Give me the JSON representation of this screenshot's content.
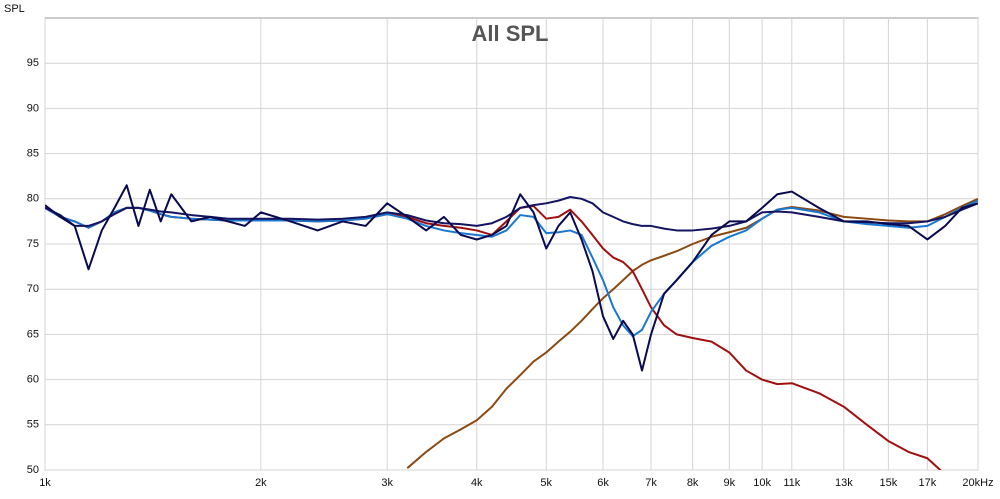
{
  "chart_data": {
    "type": "line",
    "title": "All SPL",
    "ylabel": "SPL",
    "xscale": "log",
    "grid": true,
    "xlim": [
      1000,
      20000
    ],
    "ylim": [
      50,
      100
    ],
    "yticks": [
      50,
      55,
      60,
      65,
      70,
      75,
      80,
      85,
      90,
      95
    ],
    "xticks": [
      {
        "value": 1000,
        "label": "1k"
      },
      {
        "value": 2000,
        "label": "2k"
      },
      {
        "value": 3000,
        "label": "3k"
      },
      {
        "value": 4000,
        "label": "4k"
      },
      {
        "value": 5000,
        "label": "5k"
      },
      {
        "value": 6000,
        "label": "6k"
      },
      {
        "value": 7000,
        "label": "7k"
      },
      {
        "value": 8000,
        "label": "8k"
      },
      {
        "value": 9000,
        "label": "9k"
      },
      {
        "value": 10000,
        "label": "10k"
      },
      {
        "value": 11000,
        "label": "11k"
      },
      {
        "value": 13000,
        "label": "13k"
      },
      {
        "value": 15000,
        "label": "15k"
      },
      {
        "value": 17000,
        "label": "17k"
      },
      {
        "value": 20000,
        "label": "20kHz"
      }
    ],
    "x": [
      1000,
      1050,
      1100,
      1150,
      1200,
      1250,
      1300,
      1350,
      1400,
      1450,
      1500,
      1600,
      1700,
      1800,
      1900,
      2000,
      2200,
      2400,
      2600,
      2800,
      3000,
      3200,
      3400,
      3600,
      3800,
      4000,
      4200,
      4400,
      4600,
      4800,
      5000,
      5200,
      5400,
      5600,
      5800,
      6000,
      6200,
      6400,
      6600,
      6800,
      7000,
      7300,
      7600,
      8000,
      8500,
      9000,
      9500,
      10000,
      10500,
      11000,
      12000,
      13000,
      14000,
      15000,
      16000,
      17000,
      18000,
      19000,
      20000
    ],
    "series": [
      {
        "color": "#8b4a12",
        "values": [
          null,
          null,
          null,
          null,
          null,
          null,
          null,
          null,
          null,
          null,
          null,
          null,
          null,
          null,
          null,
          null,
          null,
          null,
          null,
          null,
          null,
          50.2,
          52,
          53.5,
          54.5,
          55.5,
          57,
          59,
          60.5,
          62,
          63,
          64.2,
          65.3,
          66.5,
          67.8,
          69,
          70,
          71,
          72,
          72.7,
          73.2,
          73.7,
          74.2,
          75,
          75.8,
          76.3,
          76.8,
          77.8,
          78.8,
          79.1,
          78.7,
          78,
          77.8,
          77.6,
          77.5,
          77.5,
          78.3,
          79.2,
          80
        ]
      },
      {
        "color": "#a01010",
        "values": [
          79,
          78,
          77.5,
          76.8,
          77.5,
          78.5,
          79,
          79,
          78.7,
          78.3,
          78,
          77.8,
          77.7,
          77.6,
          77.6,
          77.6,
          77.6,
          77.5,
          77.6,
          77.8,
          78.3,
          78,
          77.3,
          77,
          76.8,
          76.5,
          76,
          77.5,
          79,
          79.2,
          77.8,
          78,
          78.8,
          77.5,
          76,
          74.5,
          73.5,
          73,
          72,
          70,
          68,
          66,
          65,
          64.6,
          64.2,
          63,
          61,
          60,
          59.5,
          59.6,
          58.5,
          57,
          55,
          53.2,
          52,
          51.3,
          49.5,
          null,
          null
        ]
      },
      {
        "color": "#1a78d0",
        "values": [
          79,
          78,
          77.5,
          76.8,
          77.5,
          78.5,
          79,
          79,
          78.7,
          78.3,
          78,
          77.8,
          77.7,
          77.6,
          77.6,
          77.6,
          77.6,
          77.5,
          77.6,
          77.8,
          78.3,
          77.8,
          77,
          76.5,
          76.2,
          76,
          75.8,
          76.5,
          78.2,
          78,
          76.2,
          76.3,
          76.5,
          76,
          73.5,
          71,
          68,
          66,
          64.8,
          65.5,
          67.5,
          69.5,
          71,
          73,
          74.8,
          75.8,
          76.5,
          77.8,
          78.8,
          79,
          78.5,
          77.5,
          77.2,
          77,
          76.8,
          77,
          78,
          79,
          79.8
        ]
      },
      {
        "color": "#141460",
        "values": [
          79,
          78.2,
          77,
          77,
          77.5,
          78.3,
          79,
          79,
          78.8,
          78.6,
          78.5,
          78.2,
          78,
          77.8,
          77.8,
          77.8,
          77.8,
          77.7,
          77.8,
          78,
          78.5,
          78.2,
          77.6,
          77.3,
          77.2,
          77,
          77.3,
          78,
          79,
          79.3,
          79.5,
          79.8,
          80.2,
          80,
          79.5,
          78.5,
          78,
          77.5,
          77.2,
          77,
          77,
          76.7,
          76.5,
          76.5,
          76.7,
          77,
          77.5,
          78.5,
          78.6,
          78.5,
          78,
          77.5,
          77.4,
          77.3,
          77.3,
          77.5,
          78,
          78.8,
          79.5
        ]
      },
      {
        "color": "#0a0a50",
        "values": [
          79.3,
          78,
          77,
          72.2,
          76.5,
          79,
          81.5,
          77,
          81,
          77.5,
          80.5,
          77.5,
          78,
          77.5,
          77,
          78.5,
          77.5,
          76.5,
          77.5,
          77,
          79.5,
          78,
          76.5,
          78,
          76,
          75.5,
          76,
          77,
          80.5,
          78.5,
          74.5,
          77,
          78.5,
          75.5,
          72,
          67,
          64.5,
          66.5,
          65,
          61,
          65,
          69.5,
          71,
          73,
          76,
          77.5,
          77.5,
          79,
          80.5,
          80.8,
          79,
          77.5,
          77.5,
          77.2,
          77,
          75.5,
          77,
          79,
          79.5
        ]
      }
    ]
  }
}
